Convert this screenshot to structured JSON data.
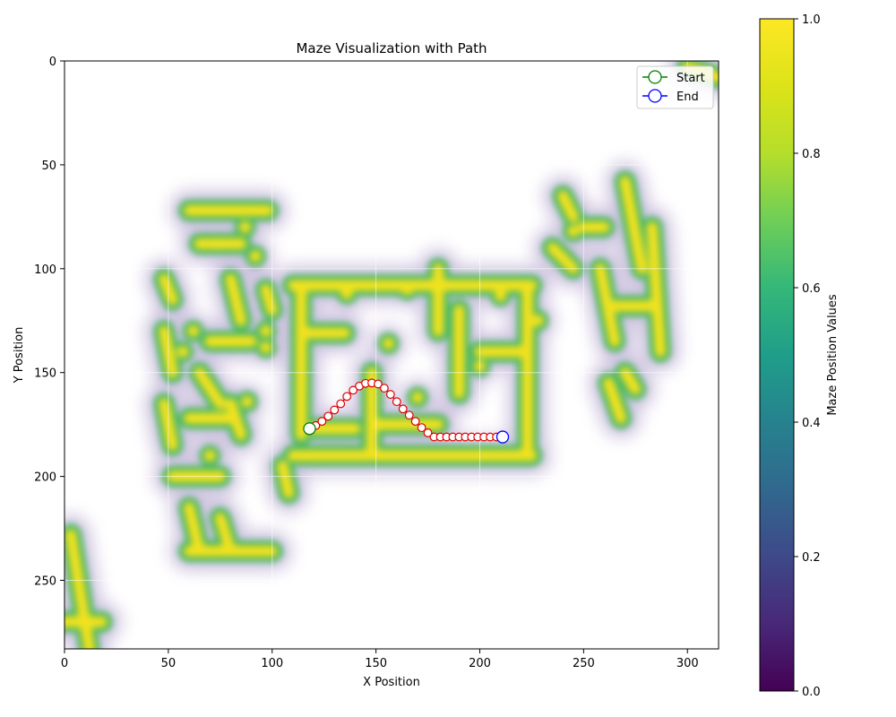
{
  "chart_data": {
    "type": "heatmap",
    "title": "Maze Visualization with Path",
    "xlabel": "X Position",
    "ylabel": "Y Position",
    "xlim": [
      0,
      315
    ],
    "ylim": [
      283,
      0
    ],
    "y_axis_inverted": true,
    "grid": true,
    "x_ticks": [
      "0",
      "50",
      "100",
      "150",
      "200",
      "250",
      "300"
    ],
    "x_tick_values": [
      0,
      50,
      100,
      150,
      200,
      250,
      300
    ],
    "y_ticks": [
      "0",
      "50",
      "100",
      "150",
      "200",
      "250"
    ],
    "y_tick_values": [
      0,
      50,
      100,
      150,
      200,
      250
    ],
    "colormap": "viridis",
    "colorbar": {
      "label": "Maze Position Values",
      "range": [
        0.0,
        1.0
      ],
      "ticks": [
        "0.0",
        "0.2",
        "0.4",
        "0.6",
        "0.8",
        "1.0"
      ],
      "tick_values": [
        0.0,
        0.2,
        0.4,
        0.6,
        0.8,
        1.0
      ]
    },
    "maze_walls": [
      {
        "x": [
          110,
          225
        ],
        "y": [
          108,
          108
        ]
      },
      {
        "x": [
          114,
          114
        ],
        "y": [
          108,
          180
        ]
      },
      {
        "x": [
          114,
          135
        ],
        "y": [
          131,
          131
        ]
      },
      {
        "x": [
          110,
          225
        ],
        "y": [
          190,
          190
        ]
      },
      {
        "x": [
          223,
          223
        ],
        "y": [
          108,
          190
        ]
      },
      {
        "x": [
          148,
          148
        ],
        "y": [
          150,
          190
        ]
      },
      {
        "x": [
          150,
          180
        ],
        "y": [
          175,
          175
        ]
      },
      {
        "x": [
          180,
          180
        ],
        "y": [
          100,
          130
        ]
      },
      {
        "x": [
          190,
          190
        ],
        "y": [
          120,
          160
        ]
      },
      {
        "x": [
          200,
          220
        ],
        "y": [
          140,
          140
        ]
      },
      {
        "x": [
          120,
          140
        ],
        "y": [
          177,
          177
        ]
      },
      {
        "x": [
          3,
          12
        ],
        "y": [
          228,
          283
        ]
      },
      {
        "x": [
          0,
          18
        ],
        "y": [
          270,
          270
        ]
      },
      {
        "x": [
          60,
          100
        ],
        "y": [
          236,
          236
        ]
      },
      {
        "x": [
          60,
          65
        ],
        "y": [
          215,
          236
        ]
      },
      {
        "x": [
          75,
          80
        ],
        "y": [
          220,
          236
        ]
      },
      {
        "x": [
          52,
          75
        ],
        "y": [
          200,
          200
        ]
      },
      {
        "x": [
          60,
          98
        ],
        "y": [
          72,
          72
        ]
      },
      {
        "x": [
          65,
          85
        ],
        "y": [
          88,
          88
        ]
      },
      {
        "x": [
          48,
          52
        ],
        "y": [
          105,
          115
        ]
      },
      {
        "x": [
          48,
          52
        ],
        "y": [
          130,
          150
        ]
      },
      {
        "x": [
          48,
          52
        ],
        "y": [
          165,
          185
        ]
      },
      {
        "x": [
          70,
          90
        ],
        "y": [
          135,
          135
        ]
      },
      {
        "x": [
          80,
          85
        ],
        "y": [
          105,
          125
        ]
      },
      {
        "x": [
          65,
          75
        ],
        "y": [
          150,
          165
        ]
      },
      {
        "x": [
          60,
          80
        ],
        "y": [
          172,
          172
        ]
      },
      {
        "x": [
          80,
          85
        ],
        "y": [
          165,
          180
        ]
      },
      {
        "x": [
          97,
          100
        ],
        "y": [
          110,
          120
        ]
      },
      {
        "x": [
          105,
          108
        ],
        "y": [
          195,
          208
        ]
      },
      {
        "x": [
          235,
          245
        ],
        "y": [
          90,
          100
        ]
      },
      {
        "x": [
          240,
          245
        ],
        "y": [
          65,
          75
        ]
      },
      {
        "x": [
          250,
          260
        ],
        "y": [
          80,
          80
        ]
      },
      {
        "x": [
          258,
          265
        ],
        "y": [
          100,
          135
        ]
      },
      {
        "x": [
          265,
          285
        ],
        "y": [
          118,
          118
        ]
      },
      {
        "x": [
          270,
          278
        ],
        "y": [
          58,
          100
        ]
      },
      {
        "x": [
          283,
          287
        ],
        "y": [
          80,
          140
        ]
      },
      {
        "x": [
          262,
          268
        ],
        "y": [
          155,
          172
        ]
      },
      {
        "x": [
          270,
          275
        ],
        "y": [
          150,
          158
        ]
      },
      {
        "x": [
          300,
          315
        ],
        "y": [
          3,
          8
        ]
      }
    ],
    "maze_dots": [
      {
        "x": 156,
        "y": 136
      },
      {
        "x": 200,
        "y": 147
      },
      {
        "x": 210,
        "y": 113
      },
      {
        "x": 165,
        "y": 110
      },
      {
        "x": 136,
        "y": 112
      },
      {
        "x": 170,
        "y": 162
      },
      {
        "x": 57,
        "y": 140
      },
      {
        "x": 74,
        "y": 88
      },
      {
        "x": 92,
        "y": 94
      },
      {
        "x": 87,
        "y": 80
      },
      {
        "x": 97,
        "y": 138
      },
      {
        "x": 88,
        "y": 164
      },
      {
        "x": 70,
        "y": 190
      },
      {
        "x": 228,
        "y": 125
      },
      {
        "x": 245,
        "y": 82
      },
      {
        "x": 97,
        "y": 130
      },
      {
        "x": 62,
        "y": 130
      }
    ],
    "path": {
      "name": "Path",
      "color": "#e00000",
      "x": [
        118,
        121,
        124,
        127,
        130,
        133,
        136,
        139,
        142,
        145,
        148,
        151,
        154,
        157,
        160,
        163,
        166,
        169,
        172,
        175,
        178,
        181,
        184,
        187,
        190,
        193,
        196,
        199,
        202,
        205,
        208,
        211
      ],
      "y": [
        177,
        175.5,
        173.5,
        171,
        168,
        165,
        161.5,
        158.5,
        156.5,
        155.2,
        155,
        155.5,
        157.5,
        160.5,
        164,
        167.5,
        170.5,
        173.5,
        176.5,
        179,
        181,
        181,
        181,
        181,
        181,
        181,
        181,
        181,
        181,
        181,
        181,
        181
      ]
    },
    "start": {
      "x": 118,
      "y": 177,
      "color": "#008000"
    },
    "end": {
      "x": 211,
      "y": 181,
      "color": "#0000ff"
    },
    "legend": {
      "placement": "top-right",
      "entries": [
        {
          "label": "Start",
          "color": "#008000"
        },
        {
          "label": "End",
          "color": "#0000ff"
        }
      ]
    }
  }
}
